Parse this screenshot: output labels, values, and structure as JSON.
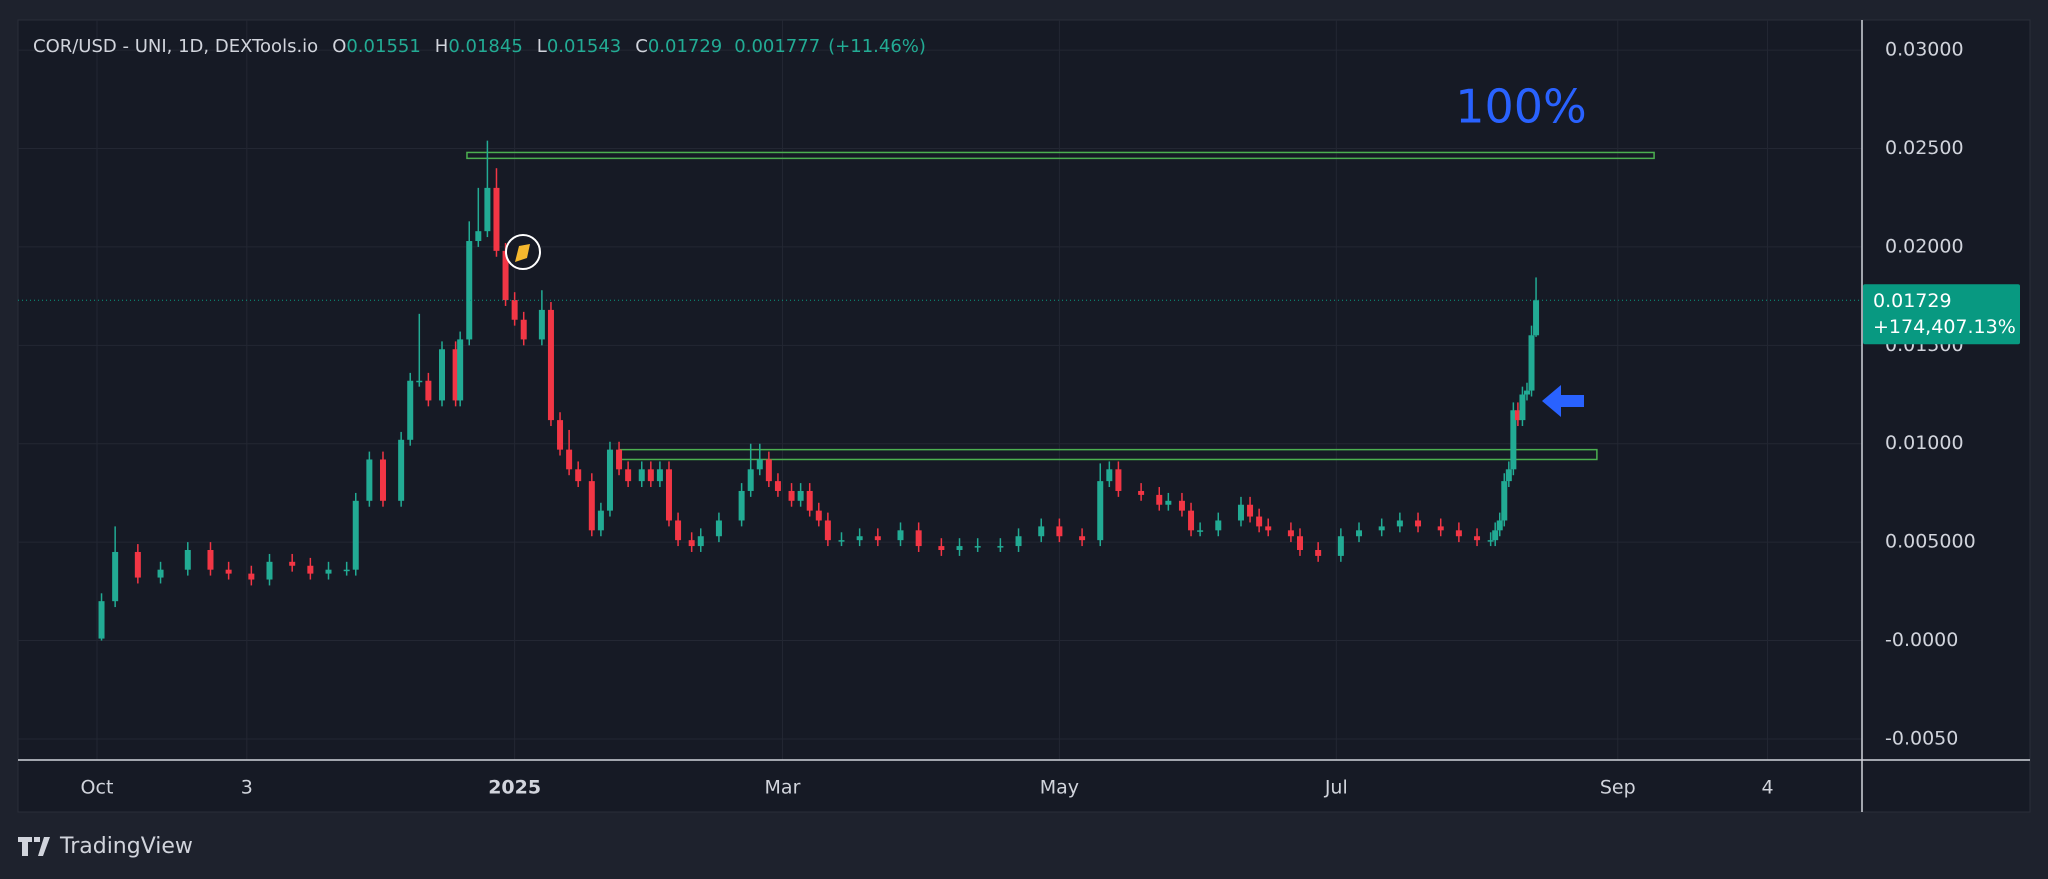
{
  "chart_data": {
    "type": "candlestick",
    "title": "COR/USD - UNI, 1D, DEXTools.io",
    "ohlc_labels": [
      "O",
      "H",
      "L",
      "C"
    ],
    "ohlc_change": 0.001777,
    "ohlc_change_label": "(+11.46%)",
    "last_price_change_label": "+174,407.13%",
    "annotation": "100%",
    "up_color": "#22ab94",
    "down_color": "#f23645",
    "zone_color": "#4caf50",
    "annotation_color": "#2962ff",
    "grid": true,
    "xlim": [
      -17.4,
      388.8
    ],
    "ylim": [
      -0.00607,
      0.03153
    ],
    "xticks": [
      {
        "value": 0,
        "label": "Oct"
      },
      {
        "value": 33,
        "label": "3"
      },
      {
        "value": 92,
        "label": "2025"
      },
      {
        "value": 151,
        "label": "Mar"
      },
      {
        "value": 212,
        "label": "May"
      },
      {
        "value": 273,
        "label": "Jul"
      },
      {
        "value": 335,
        "label": "Sep"
      },
      {
        "value": 368,
        "label": "4"
      }
    ],
    "yticks": [
      {
        "value": 0.03,
        "label": "0.03000"
      },
      {
        "value": 0.025,
        "label": "0.02500"
      },
      {
        "value": 0.02,
        "label": "0.02000"
      },
      {
        "value": 0.015,
        "label": "0.01500"
      },
      {
        "value": 0.01,
        "label": "0.01000"
      },
      {
        "value": 0.005,
        "label": "0.005000"
      },
      {
        "value": 0,
        "label": "-0.0000"
      },
      {
        "value": -0.005,
        "label": "-0.0050"
      }
    ],
    "zones": [
      {
        "x": [
          81.5,
          343
        ],
        "y": [
          0.0245,
          0.0248
        ]
      },
      {
        "x": [
          115.2,
          330.4
        ],
        "y": [
          0.0092,
          0.0097
        ]
      }
    ],
    "series": [
      {
        "x": [
          1,
          4,
          9,
          14,
          20,
          25,
          29,
          34,
          38,
          43,
          47,
          51,
          55,
          57,
          60,
          63,
          67,
          69,
          71,
          73,
          76,
          79,
          80,
          82,
          84,
          86,
          88,
          90,
          92,
          94,
          98,
          100,
          102,
          104,
          106,
          109,
          111,
          113,
          115,
          117,
          120,
          122,
          124,
          126,
          128,
          131,
          133,
          137,
          142,
          144,
          146,
          148,
          150,
          153,
          155,
          157,
          159,
          161,
          164,
          168,
          172,
          177,
          181,
          186,
          190,
          194,
          199,
          203,
          208,
          212,
          217,
          221,
          223,
          225,
          230,
          234,
          236,
          239,
          241,
          243,
          247,
          252,
          254,
          256,
          258,
          263,
          265,
          269,
          274,
          278,
          283,
          287,
          291,
          296,
          300,
          304,
          307,
          308,
          309,
          310,
          311,
          312,
          313,
          314,
          315,
          316,
          317
        ],
        "open": [
          0.0001,
          0.002,
          0.0045,
          0.0032,
          0.0036,
          0.0046,
          0.0036,
          0.0034,
          0.0031,
          0.004,
          0.0038,
          0.0034,
          0.0036,
          0.0036,
          0.0071,
          0.0092,
          0.0071,
          0.0102,
          0.0132,
          0.0132,
          0.0122,
          0.0148,
          0.0122,
          0.0153,
          0.0203,
          0.0208,
          0.023,
          0.0198,
          0.0173,
          0.0163,
          0.0153,
          0.0168,
          0.0112,
          0.0097,
          0.0087,
          0.0081,
          0.0056,
          0.0066,
          0.0097,
          0.0087,
          0.0081,
          0.0087,
          0.0081,
          0.0087,
          0.0061,
          0.0051,
          0.0048,
          0.0053,
          0.0061,
          0.0076,
          0.0087,
          0.0092,
          0.0081,
          0.0076,
          0.0071,
          0.0076,
          0.0066,
          0.0061,
          0.0051,
          0.0051,
          0.0053,
          0.0051,
          0.0056,
          0.0048,
          0.0046,
          0.0048,
          0.0048,
          0.0048,
          0.0053,
          0.0058,
          0.0053,
          0.0051,
          0.0081,
          0.0087,
          0.0076,
          0.0074,
          0.0069,
          0.0071,
          0.0066,
          0.0056,
          0.0056,
          0.0061,
          0.0069,
          0.0063,
          0.0058,
          0.0056,
          0.0053,
          0.0046,
          0.0043,
          0.0053,
          0.0056,
          0.0058,
          0.0061,
          0.0058,
          0.0056,
          0.0053,
          0.0051,
          0.0051,
          0.0056,
          0.0061,
          0.0081,
          0.0087,
          0.0117,
          0.0112,
          0.0125,
          0.0127,
          0.01551
        ],
        "high": [
          0.0024,
          0.0058,
          0.0049,
          0.004,
          0.005,
          0.005,
          0.004,
          0.0038,
          0.0044,
          0.0044,
          0.0042,
          0.004,
          0.004,
          0.0075,
          0.0096,
          0.0096,
          0.0106,
          0.0136,
          0.0166,
          0.0136,
          0.0152,
          0.0152,
          0.0157,
          0.0213,
          0.023,
          0.0254,
          0.024,
          0.0202,
          0.0177,
          0.0167,
          0.0178,
          0.0172,
          0.0116,
          0.0107,
          0.0091,
          0.0085,
          0.007,
          0.0101,
          0.0101,
          0.0091,
          0.0091,
          0.0091,
          0.0091,
          0.0091,
          0.0065,
          0.0055,
          0.0057,
          0.0065,
          0.008,
          0.01,
          0.01,
          0.0096,
          0.0085,
          0.008,
          0.008,
          0.008,
          0.007,
          0.0065,
          0.0055,
          0.0057,
          0.0057,
          0.006,
          0.006,
          0.0052,
          0.0052,
          0.0052,
          0.0052,
          0.0057,
          0.0062,
          0.0062,
          0.0057,
          0.009,
          0.0091,
          0.0091,
          0.008,
          0.0078,
          0.0075,
          0.0075,
          0.007,
          0.006,
          0.0065,
          0.0073,
          0.0073,
          0.0067,
          0.0062,
          0.006,
          0.0057,
          0.005,
          0.0057,
          0.006,
          0.0062,
          0.0065,
          0.0065,
          0.0062,
          0.006,
          0.0057,
          0.0055,
          0.006,
          0.0065,
          0.0085,
          0.0091,
          0.0121,
          0.0121,
          0.0129,
          0.0131,
          0.016,
          0.01845
        ],
        "low": [
          0,
          0.0017,
          0.0029,
          0.0029,
          0.0033,
          0.0033,
          0.0031,
          0.0028,
          0.0028,
          0.0035,
          0.0031,
          0.0031,
          0.0033,
          0.0033,
          0.0068,
          0.0068,
          0.0068,
          0.0099,
          0.0129,
          0.0119,
          0.0119,
          0.0119,
          0.0119,
          0.015,
          0.02,
          0.0205,
          0.0195,
          0.017,
          0.016,
          0.015,
          0.015,
          0.0109,
          0.0094,
          0.0084,
          0.0078,
          0.0053,
          0.0053,
          0.0063,
          0.0084,
          0.0078,
          0.0078,
          0.0078,
          0.0078,
          0.0058,
          0.0048,
          0.0045,
          0.0045,
          0.005,
          0.0058,
          0.0073,
          0.0084,
          0.0078,
          0.0073,
          0.0068,
          0.0068,
          0.0063,
          0.0058,
          0.0048,
          0.0048,
          0.0048,
          0.0048,
          0.0048,
          0.0045,
          0.0043,
          0.0043,
          0.0045,
          0.0045,
          0.0045,
          0.005,
          0.005,
          0.0048,
          0.0048,
          0.0078,
          0.0073,
          0.0071,
          0.0066,
          0.0066,
          0.0063,
          0.0053,
          0.0053,
          0.0053,
          0.0058,
          0.006,
          0.0055,
          0.0053,
          0.005,
          0.0043,
          0.004,
          0.004,
          0.005,
          0.0053,
          0.0055,
          0.0055,
          0.0053,
          0.005,
          0.0048,
          0.0048,
          0.0048,
          0.0053,
          0.0058,
          0.0078,
          0.0084,
          0.0109,
          0.0109,
          0.0122,
          0.0124,
          0.01543
        ],
        "close": [
          0.002,
          0.0045,
          0.0032,
          0.0036,
          0.0046,
          0.0036,
          0.0034,
          0.0031,
          0.004,
          0.0038,
          0.0034,
          0.0036,
          0.0036,
          0.0071,
          0.0092,
          0.0071,
          0.0102,
          0.0132,
          0.0132,
          0.0122,
          0.0148,
          0.0122,
          0.0153,
          0.0203,
          0.0208,
          0.023,
          0.0198,
          0.0173,
          0.0163,
          0.0153,
          0.0168,
          0.0112,
          0.0097,
          0.0087,
          0.0081,
          0.0056,
          0.0066,
          0.0097,
          0.0087,
          0.0081,
          0.0087,
          0.0081,
          0.0087,
          0.0061,
          0.0051,
          0.0048,
          0.0053,
          0.0061,
          0.0076,
          0.0087,
          0.0092,
          0.0081,
          0.0076,
          0.0071,
          0.0076,
          0.0066,
          0.0061,
          0.0051,
          0.0051,
          0.0053,
          0.0051,
          0.0056,
          0.0048,
          0.0046,
          0.0048,
          0.0048,
          0.0048,
          0.0053,
          0.0058,
          0.0053,
          0.0051,
          0.0081,
          0.0087,
          0.0076,
          0.0074,
          0.0069,
          0.0071,
          0.0066,
          0.0056,
          0.0056,
          0.0061,
          0.0069,
          0.0063,
          0.0058,
          0.0056,
          0.0053,
          0.0046,
          0.0043,
          0.0053,
          0.0056,
          0.0058,
          0.0061,
          0.0058,
          0.0056,
          0.0053,
          0.0051,
          0.0051,
          0.0056,
          0.0061,
          0.0081,
          0.0087,
          0.0117,
          0.0112,
          0.0125,
          0.0127,
          0.01551,
          0.01729
        ]
      }
    ]
  },
  "brand": "TradingView"
}
